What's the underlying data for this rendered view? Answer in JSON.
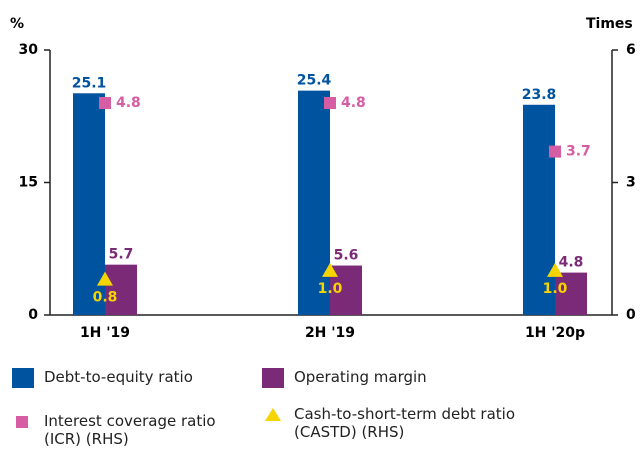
{
  "chart_data": {
    "type": "bar",
    "y_label": "%",
    "y2_label": "Times",
    "categories": [
      "1H '19",
      "2H '19",
      "1H '20p"
    ],
    "series": [
      {
        "name": "Debt-to-equity ratio",
        "color": "#00539f",
        "values": [
          25.1,
          25.4,
          23.8
        ]
      },
      {
        "name": "Operating margin",
        "color": "#7b2a78",
        "values": [
          5.7,
          5.6,
          4.8
        ]
      },
      {
        "name": "Interest coverage ratio (ICR) (RHS)",
        "color": "#d65ca4",
        "type": "square",
        "axis": "y2",
        "values": [
          4.8,
          4.8,
          3.7
        ]
      },
      {
        "name": "Cash-to-short-term debt ratio (CASTD) (RHS)",
        "color": "#f5d400",
        "type": "triangle",
        "axis": "y2",
        "values": [
          0.8,
          1.0,
          1.0
        ],
        "value_labels": [
          "0.8",
          "1.0",
          "1.0"
        ]
      }
    ],
    "ylim": [
      0,
      30
    ],
    "yticks": [
      0,
      15,
      30
    ],
    "y2lim": [
      0,
      6
    ],
    "y2ticks": [
      0,
      3,
      6
    ]
  }
}
